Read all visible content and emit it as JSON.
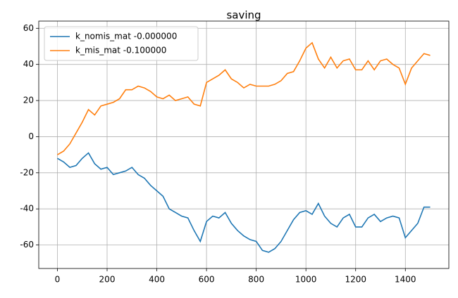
{
  "chart_data": {
    "type": "line",
    "title": "saving",
    "x": [
      0,
      25,
      50,
      75,
      100,
      125,
      150,
      175,
      200,
      225,
      250,
      275,
      300,
      325,
      350,
      375,
      400,
      425,
      450,
      475,
      500,
      525,
      550,
      575,
      600,
      625,
      650,
      675,
      700,
      725,
      750,
      775,
      800,
      825,
      850,
      875,
      900,
      925,
      950,
      975,
      1000,
      1025,
      1050,
      1075,
      1100,
      1125,
      1150,
      1175,
      1200,
      1225,
      1250,
      1275,
      1300,
      1325,
      1350,
      1375,
      1400,
      1425,
      1450,
      1475,
      1500
    ],
    "series": [
      {
        "name": "k_nomis_mat -0.000000",
        "color": "#1f77b4",
        "values": [
          -12,
          -14,
          -17,
          -16,
          -12,
          -9,
          -15,
          -18,
          -17,
          -21,
          -20,
          -19,
          -17,
          -21,
          -23,
          -27,
          -30,
          -33,
          -40,
          -42,
          -44,
          -45,
          -52,
          -58,
          -47,
          -44,
          -45,
          -42,
          -48,
          -52,
          -55,
          -57,
          -58,
          -63,
          -64,
          -62,
          -58,
          -52,
          -46,
          -42,
          -41,
          -43,
          -37,
          -44,
          -48,
          -50,
          -45,
          -43,
          -50,
          -50,
          -45,
          -43,
          -47,
          -45,
          -44,
          -45,
          -56,
          -52,
          -48,
          -39,
          -39
        ]
      },
      {
        "name": "k_mis_mat -0.100000",
        "color": "#ff7f0e",
        "values": [
          -10,
          -8,
          -4,
          2,
          8,
          15,
          12,
          17,
          18,
          19,
          21,
          26,
          26,
          28,
          27,
          25,
          22,
          21,
          23,
          20,
          21,
          22,
          18,
          17,
          30,
          32,
          34,
          37,
          32,
          30,
          27,
          29,
          28,
          28,
          28,
          29,
          31,
          35,
          36,
          42,
          49,
          52,
          43,
          38,
          44,
          38,
          42,
          43,
          37,
          37,
          42,
          37,
          42,
          43,
          40,
          38,
          29,
          38,
          42,
          46,
          45
        ]
      }
    ],
    "xlim": [
      -75,
      1575
    ],
    "ylim": [
      -73,
      64
    ],
    "xticks": [
      0,
      200,
      400,
      600,
      800,
      1000,
      1200,
      1400
    ],
    "yticks": [
      -60,
      -40,
      -20,
      0,
      20,
      40,
      60
    ],
    "grid": true,
    "legend": "upper left"
  }
}
